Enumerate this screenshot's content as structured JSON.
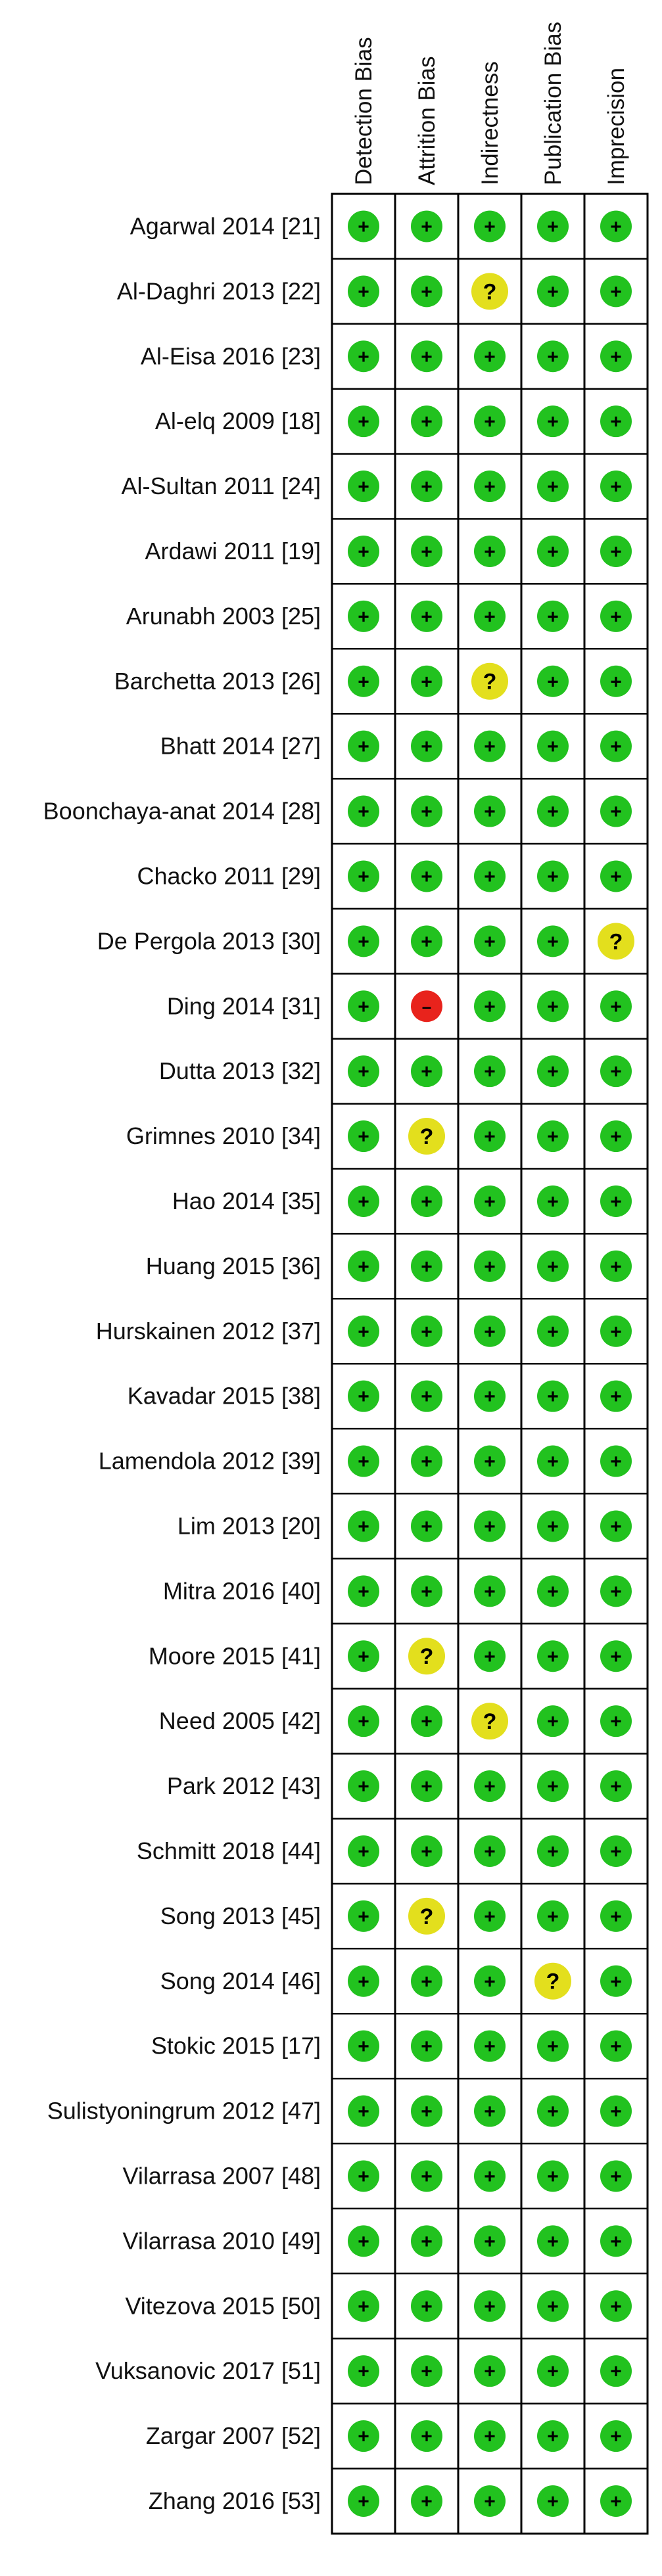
{
  "columns": [
    "Detection Bias",
    "Attrition Bias",
    "Indirectness",
    "Publication Bias",
    "Imprecision"
  ],
  "symbols": {
    "+": {
      "name": "low-risk",
      "glyph": "+",
      "color": "#22c21f"
    },
    "?": {
      "name": "unclear-risk",
      "glyph": "?",
      "color": "#e3df1d"
    },
    "-": {
      "name": "high-risk",
      "glyph": "–",
      "color": "#e8231c"
    }
  },
  "studies": [
    {
      "label": "Agarwal 2014 [21]",
      "ratings": [
        "+",
        "+",
        "+",
        "+",
        "+"
      ]
    },
    {
      "label": "Al-Daghri 2013 [22]",
      "ratings": [
        "+",
        "+",
        "?",
        "+",
        "+"
      ]
    },
    {
      "label": "Al-Eisa 2016    [23]",
      "ratings": [
        "+",
        "+",
        "+",
        "+",
        "+"
      ]
    },
    {
      "label": "Al-elq 2009    [18]",
      "ratings": [
        "+",
        "+",
        "+",
        "+",
        "+"
      ]
    },
    {
      "label": "Al-Sultan 2011 [24]",
      "ratings": [
        "+",
        "+",
        "+",
        "+",
        "+"
      ]
    },
    {
      "label": "Ardawi 2011 [19]",
      "ratings": [
        "+",
        "+",
        "+",
        "+",
        "+"
      ]
    },
    {
      "label": "Arunabh 2003 [25]",
      "ratings": [
        "+",
        "+",
        "+",
        "+",
        "+"
      ]
    },
    {
      "label": "Barchetta 2013 [26]",
      "ratings": [
        "+",
        "+",
        "?",
        "+",
        "+"
      ]
    },
    {
      "label": "Bhatt 2014 [27]",
      "ratings": [
        "+",
        "+",
        "+",
        "+",
        "+"
      ]
    },
    {
      "label": "Boonchaya-anat 2014 [28]",
      "ratings": [
        "+",
        "+",
        "+",
        "+",
        "+"
      ]
    },
    {
      "label": "Chacko 2011    [29]",
      "ratings": [
        "+",
        "+",
        "+",
        "+",
        "+"
      ]
    },
    {
      "label": "De Pergola 2013 [30]",
      "ratings": [
        "+",
        "+",
        "+",
        "+",
        "?"
      ]
    },
    {
      "label": "Ding 2014 [31]",
      "ratings": [
        "+",
        "-",
        "+",
        "+",
        "+"
      ]
    },
    {
      "label": "Dutta 2013 [32]",
      "ratings": [
        "+",
        "+",
        "+",
        "+",
        "+"
      ]
    },
    {
      "label": "Grimnes 2010 [34]",
      "ratings": [
        "+",
        "?",
        "+",
        "+",
        "+"
      ]
    },
    {
      "label": "Hao 2014 [35]",
      "ratings": [
        "+",
        "+",
        "+",
        "+",
        "+"
      ]
    },
    {
      "label": "Huang 2015 [36]",
      "ratings": [
        "+",
        "+",
        "+",
        "+",
        "+"
      ]
    },
    {
      "label": "Hurskainen 2012 [37]",
      "ratings": [
        "+",
        "+",
        "+",
        "+",
        "+"
      ]
    },
    {
      "label": "Kavadar 2015 [38]",
      "ratings": [
        "+",
        "+",
        "+",
        "+",
        "+"
      ]
    },
    {
      "label": "Lamendola 2012 [39]",
      "ratings": [
        "+",
        "+",
        "+",
        "+",
        "+"
      ]
    },
    {
      "label": "Lim 2013 [20]",
      "ratings": [
        "+",
        "+",
        "+",
        "+",
        "+"
      ]
    },
    {
      "label": "Mitra 2016 [40]",
      "ratings": [
        "+",
        "+",
        "+",
        "+",
        "+"
      ]
    },
    {
      "label": "Moore 2015 [41]",
      "ratings": [
        "+",
        "?",
        "+",
        "+",
        "+"
      ]
    },
    {
      "label": "Need 2005 [42]",
      "ratings": [
        "+",
        "+",
        "?",
        "+",
        "+"
      ]
    },
    {
      "label": "Park 2012 [43]",
      "ratings": [
        "+",
        "+",
        "+",
        "+",
        "+"
      ]
    },
    {
      "label": "Schmitt 2018 [44]",
      "ratings": [
        "+",
        "+",
        "+",
        "+",
        "+"
      ]
    },
    {
      "label": "Song 2013 [45]",
      "ratings": [
        "+",
        "?",
        "+",
        "+",
        "+"
      ]
    },
    {
      "label": "Song 2014  [46]",
      "ratings": [
        "+",
        "+",
        "+",
        "?",
        "+"
      ]
    },
    {
      "label": "Stokic 2015 [17]",
      "ratings": [
        "+",
        "+",
        "+",
        "+",
        "+"
      ]
    },
    {
      "label": "Sulistyoningrum 2012 [47]",
      "ratings": [
        "+",
        "+",
        "+",
        "+",
        "+"
      ]
    },
    {
      "label": "Vilarrasa 2007 [48]",
      "ratings": [
        "+",
        "+",
        "+",
        "+",
        "+"
      ]
    },
    {
      "label": "Vilarrasa 2010 [49]",
      "ratings": [
        "+",
        "+",
        "+",
        "+",
        "+"
      ]
    },
    {
      "label": "Vitezova 2015 [50]",
      "ratings": [
        "+",
        "+",
        "+",
        "+",
        "+"
      ]
    },
    {
      "label": "Vuksanovic 2017 [51]",
      "ratings": [
        "+",
        "+",
        "+",
        "+",
        "+"
      ]
    },
    {
      "label": "Zargar 2007 [52]",
      "ratings": [
        "+",
        "+",
        "+",
        "+",
        "+"
      ]
    },
    {
      "label": "Zhang 2016 [53]",
      "ratings": [
        "+",
        "+",
        "+",
        "+",
        "+"
      ]
    }
  ]
}
